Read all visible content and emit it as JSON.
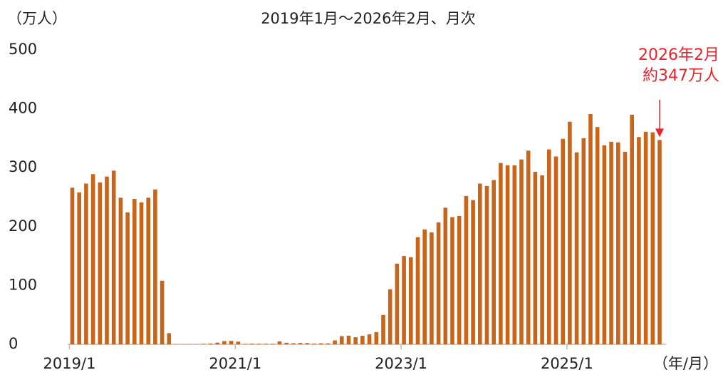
{
  "chart_data": {
    "type": "bar",
    "title": "2019年1月～2026年2月、月次",
    "y_axis_label": "（万人）",
    "x_axis_label": "（年/月）",
    "annotations": [
      "2026年2月",
      "約347万人"
    ],
    "color": "#c8651b",
    "annotation_color": "#e8232b",
    "ylim": [
      0,
      500
    ],
    "yticks": [
      0,
      100,
      200,
      300,
      400,
      500
    ],
    "grid": false,
    "categories": [
      "2019/1",
      null,
      null,
      null,
      null,
      null,
      null,
      null,
      null,
      null,
      null,
      null,
      null,
      null,
      null,
      null,
      null,
      null,
      null,
      null,
      null,
      null,
      null,
      null,
      "2021/1",
      null,
      null,
      null,
      null,
      null,
      null,
      null,
      null,
      null,
      null,
      null,
      null,
      null,
      null,
      null,
      null,
      null,
      null,
      null,
      null,
      null,
      null,
      null,
      "2023/1",
      null,
      null,
      null,
      null,
      null,
      null,
      null,
      null,
      null,
      null,
      null,
      null,
      null,
      null,
      null,
      null,
      null,
      null,
      null,
      null,
      null,
      null,
      null,
      "2025/1",
      null,
      null,
      null,
      null,
      null,
      null,
      null,
      null,
      null,
      null,
      null,
      null,
      null
    ],
    "values": [
      266,
      258,
      273,
      289,
      275,
      285,
      295,
      249,
      224,
      247,
      241,
      249,
      263,
      108,
      19,
      0.3,
      0.2,
      0.3,
      0.4,
      0.9,
      1.4,
      2.8,
      5.6,
      5.9,
      4.6,
      0.7,
      1.2,
      1.1,
      1.0,
      0.9,
      5.1,
      2.6,
      1.8,
      2.2,
      2.1,
      1.2,
      1.7,
      1.7,
      6.6,
      13.9,
      14.7,
      12.1,
      14.5,
      16.9,
      20.7,
      49.9,
      93.4,
      137,
      150,
      148,
      182,
      195,
      190,
      207,
      232,
      216,
      218,
      252,
      245,
      273,
      269,
      279,
      308,
      304,
      304,
      314,
      329,
      293,
      287,
      331,
      319,
      349,
      378,
      326,
      350,
      391,
      369,
      338,
      344,
      343,
      327,
      390,
      352,
      361,
      360,
      347
    ]
  }
}
